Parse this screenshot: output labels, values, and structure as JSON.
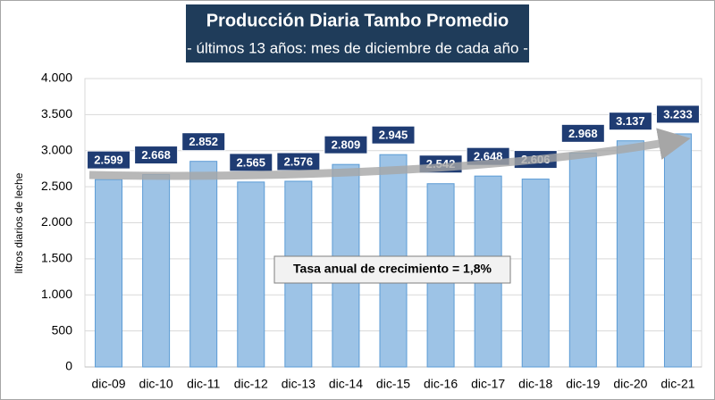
{
  "chart_data": {
    "type": "bar",
    "title": "Producción Diaria Tambo Promedio",
    "subtitle": "- últimos 13 años: mes de diciembre de cada año -",
    "y_label": "litros diarios de leche",
    "annotation": "Tasa anual de crecimiento = 1,8%",
    "categories": [
      "dic-09",
      "dic-10",
      "dic-11",
      "dic-12",
      "dic-13",
      "dic-14",
      "dic-15",
      "dic-16",
      "dic-17",
      "dic-18",
      "dic-19",
      "dic-20",
      "dic-21"
    ],
    "values": [
      2599,
      2668,
      2852,
      2565,
      2576,
      2809,
      2945,
      2542,
      2648,
      2606,
      2968,
      3137,
      3233
    ],
    "value_labels": [
      "2.599",
      "2.668",
      "2.852",
      "2.565",
      "2.576",
      "2.809",
      "2.945",
      "2.542",
      "2.648",
      "2.606",
      "2.968",
      "3.137",
      "3.233"
    ],
    "color": "#9dc3e6",
    "ylim": [
      0,
      4000
    ],
    "yticks": [
      0,
      500,
      {
        "value": 1000,
        "label": "1.000"
      },
      {
        "value": 1500,
        "label": "1.500"
      },
      {
        "value": 2000,
        "label": "2.000"
      },
      {
        "value": 2500,
        "label": "2.500"
      },
      {
        "value": 3000,
        "label": "3.000"
      },
      {
        "value": 3500,
        "label": "3.500"
      },
      {
        "value": 4000,
        "label": "4.000"
      }
    ],
    "grid": true
  }
}
